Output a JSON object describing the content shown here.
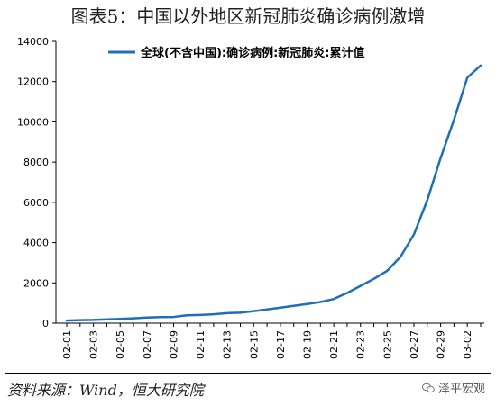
{
  "header": {
    "title": "图表5：中国以外地区新冠肺炎确诊病例激增"
  },
  "footer": {
    "source": "资料来源：Wind，恒大研究院",
    "watermark": "泽平宏观"
  },
  "colors": {
    "series": "#1f6fb6",
    "axis": "#000000",
    "text": "#000000"
  },
  "chart_data": {
    "type": "line",
    "title": "",
    "xlabel": "",
    "ylabel": "",
    "legend_position": "top-center",
    "grid": false,
    "ylim": [
      0,
      14000
    ],
    "yticks": [
      0,
      2000,
      4000,
      6000,
      8000,
      10000,
      12000,
      14000
    ],
    "x": [
      "02-01",
      "02-02",
      "02-03",
      "02-04",
      "02-05",
      "02-06",
      "02-07",
      "02-08",
      "02-09",
      "02-10",
      "02-11",
      "02-12",
      "02-13",
      "02-14",
      "02-15",
      "02-16",
      "02-17",
      "02-18",
      "02-19",
      "02-20",
      "02-21",
      "02-22",
      "02-23",
      "02-24",
      "02-25",
      "02-26",
      "02-27",
      "02-28",
      "02-29",
      "03-01",
      "03-02",
      "03-03"
    ],
    "xtick_labels": [
      "02-01",
      "02-03",
      "02-05",
      "02-07",
      "02-09",
      "02-11",
      "02-13",
      "02-15",
      "02-17",
      "02-19",
      "02-21",
      "02-23",
      "02-25",
      "02-27",
      "02-29",
      "03-02"
    ],
    "series": [
      {
        "name": "全球(不含中国):确诊病例:新冠肺炎:累计值",
        "values": [
          130,
          150,
          160,
          190,
          210,
          240,
          280,
          300,
          310,
          390,
          410,
          440,
          500,
          520,
          600,
          680,
          770,
          860,
          950,
          1050,
          1200,
          1500,
          1850,
          2200,
          2600,
          3300,
          4400,
          6100,
          8200,
          10100,
          12200,
          12800
        ]
      }
    ]
  }
}
